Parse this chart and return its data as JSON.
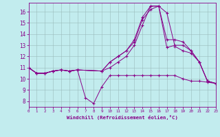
{
  "xlabel": "Windchill (Refroidissement éolien,°C)",
  "bg_color": "#c2ecee",
  "line_color": "#880088",
  "grid_color": "#99bbbb",
  "xlim": [
    0,
    23
  ],
  "ylim": [
    7.5,
    16.8
  ],
  "xticks": [
    0,
    1,
    2,
    3,
    4,
    5,
    6,
    7,
    8,
    9,
    10,
    11,
    12,
    13,
    14,
    15,
    16,
    17,
    18,
    19,
    20,
    21,
    22,
    23
  ],
  "yticks": [
    8,
    9,
    10,
    11,
    12,
    13,
    14,
    15,
    16
  ],
  "lines": [
    {
      "x": [
        0,
        1,
        2,
        3,
        4,
        5,
        6,
        7,
        8,
        9,
        10,
        11,
        12,
        13,
        14,
        15,
        16,
        17,
        18,
        19,
        20,
        21,
        22,
        23
      ],
      "y": [
        11.0,
        10.5,
        10.5,
        10.7,
        10.8,
        10.7,
        10.8,
        8.3,
        7.8,
        9.3,
        10.3,
        10.3,
        10.3,
        10.3,
        10.3,
        10.3,
        10.3,
        10.3,
        10.3,
        10.0,
        9.8,
        9.8,
        9.7,
        9.6
      ]
    },
    {
      "x": [
        0,
        1,
        2,
        3,
        4,
        5,
        6,
        9,
        10,
        11,
        12,
        13,
        14,
        15,
        16,
        17,
        18,
        19,
        20,
        21,
        22,
        23
      ],
      "y": [
        11.0,
        10.5,
        10.5,
        10.7,
        10.8,
        10.7,
        10.8,
        10.7,
        11.5,
        12.0,
        12.5,
        13.3,
        15.3,
        16.2,
        16.5,
        15.9,
        12.9,
        12.5,
        12.3,
        11.5,
        9.8,
        9.6
      ]
    },
    {
      "x": [
        0,
        1,
        2,
        3,
        4,
        5,
        6,
        9,
        10,
        11,
        12,
        13,
        14,
        15,
        16,
        17,
        18,
        19,
        20,
        21,
        22,
        23
      ],
      "y": [
        11.0,
        10.5,
        10.5,
        10.7,
        10.8,
        10.7,
        10.8,
        10.7,
        11.5,
        12.0,
        12.5,
        13.5,
        15.5,
        16.5,
        16.5,
        13.5,
        13.5,
        13.3,
        12.5,
        11.5,
        9.8,
        9.6
      ]
    },
    {
      "x": [
        0,
        1,
        2,
        3,
        4,
        5,
        6,
        9,
        10,
        11,
        12,
        13,
        14,
        15,
        16,
        17,
        18,
        19,
        20,
        21,
        22,
        23
      ],
      "y": [
        11.0,
        10.5,
        10.5,
        10.7,
        10.8,
        10.7,
        10.8,
        10.7,
        11.0,
        11.5,
        12.0,
        13.0,
        14.8,
        16.5,
        16.5,
        12.8,
        13.0,
        13.0,
        12.5,
        11.5,
        9.8,
        9.6
      ]
    }
  ]
}
